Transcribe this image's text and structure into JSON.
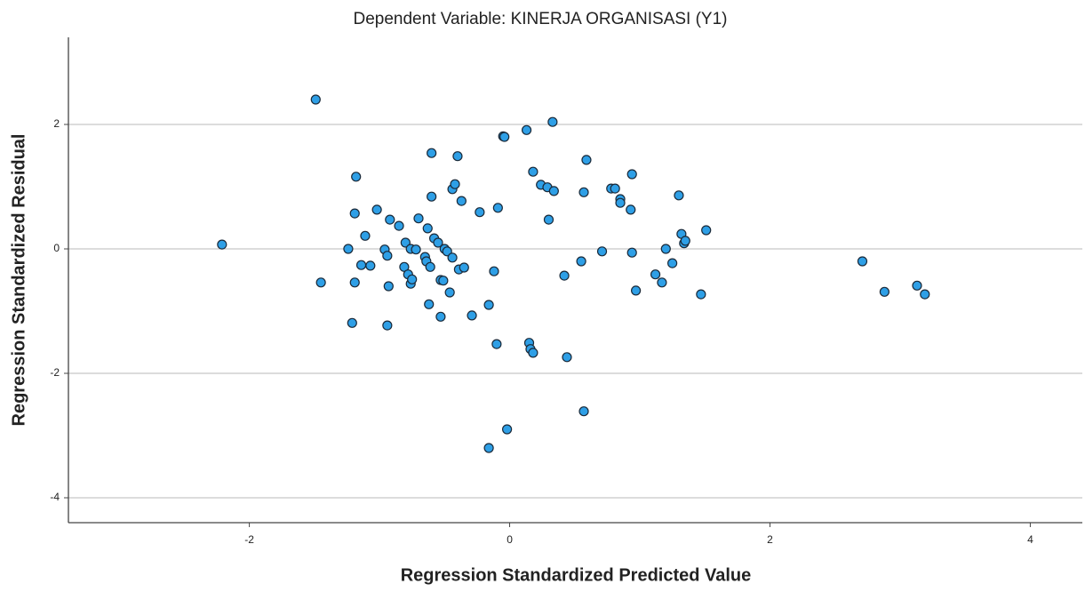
{
  "chart_data": {
    "type": "scatter",
    "title": "Dependent Variable: KINERJA ORGANISASI (Y1)",
    "x_label": "Regression Standardized Predicted Value",
    "y_label": "Regression Standardized Residual",
    "color": "#2e9fe6",
    "grid": true,
    "xlim": [
      -3.39,
      4.4
    ],
    "ylim": [
      -4.4,
      3.4
    ],
    "xticks": [
      -2,
      0,
      2,
      4
    ],
    "yticks": [
      -4,
      -2,
      0,
      2
    ],
    "x": [
      -2.21,
      -1.49,
      -1.45,
      -1.24,
      -1.21,
      -1.19,
      -1.19,
      -1.18,
      -1.14,
      -1.11,
      -1.07,
      -1.02,
      -0.96,
      -0.94,
      -0.93,
      -0.94,
      -0.92,
      -0.85,
      -0.81,
      -0.8,
      -0.78,
      -0.76,
      -0.76,
      -0.75,
      -0.72,
      -0.7,
      -0.65,
      -0.64,
      -0.63,
      -0.62,
      -0.61,
      -0.6,
      -0.6,
      -0.58,
      -0.55,
      -0.53,
      -0.53,
      -0.51,
      -0.5,
      -0.48,
      -0.46,
      -0.44,
      -0.44,
      -0.42,
      -0.4,
      -0.39,
      -0.37,
      -0.35,
      -0.29,
      -0.23,
      -0.16,
      -0.16,
      -0.12,
      -0.1,
      -0.09,
      -0.05,
      -0.04,
      -0.02,
      0.13,
      0.15,
      0.16,
      0.18,
      0.18,
      0.24,
      0.29,
      0.3,
      0.33,
      0.34,
      0.42,
      0.44,
      0.55,
      0.57,
      0.57,
      0.59,
      0.71,
      0.78,
      0.81,
      0.85,
      0.85,
      0.93,
      0.94,
      0.94,
      0.97,
      1.12,
      1.17,
      1.2,
      1.25,
      1.3,
      1.32,
      1.34,
      1.35,
      1.47,
      1.51,
      2.71,
      2.88,
      3.13,
      3.19
    ],
    "y": [
      0.07,
      2.4,
      -0.54,
      0.0,
      -1.19,
      0.57,
      -0.54,
      1.16,
      -0.26,
      0.21,
      -0.27,
      0.63,
      -0.01,
      -0.11,
      -0.6,
      -1.23,
      0.47,
      0.37,
      -0.29,
      0.1,
      -0.41,
      0.0,
      -0.56,
      -0.49,
      -0.01,
      0.49,
      -0.13,
      -0.2,
      0.33,
      -0.89,
      -0.29,
      1.54,
      0.84,
      0.17,
      0.1,
      -1.09,
      -0.5,
      -0.51,
      0.0,
      -0.04,
      -0.7,
      -0.14,
      0.96,
      1.04,
      1.49,
      -0.33,
      0.77,
      -0.3,
      -1.07,
      0.59,
      -0.9,
      -3.2,
      -0.36,
      -1.53,
      0.66,
      1.81,
      1.8,
      -2.9,
      1.91,
      -1.51,
      -1.61,
      -1.67,
      1.24,
      1.03,
      0.99,
      0.47,
      2.04,
      0.93,
      -0.43,
      -1.74,
      -0.2,
      -2.61,
      0.91,
      1.43,
      -0.04,
      0.97,
      0.97,
      0.8,
      0.74,
      0.63,
      1.2,
      -0.06,
      -0.67,
      -0.41,
      -0.54,
      0.0,
      -0.23,
      0.86,
      0.24,
      0.09,
      0.13,
      -0.73,
      0.3,
      -0.2,
      -0.69,
      -0.59,
      -0.73
    ]
  }
}
